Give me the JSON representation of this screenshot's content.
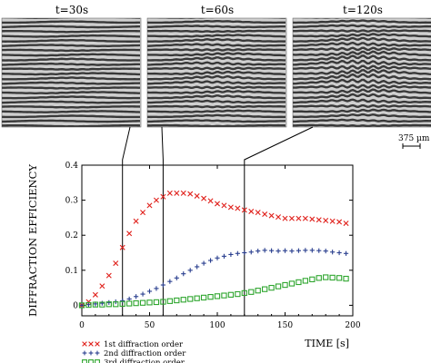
{
  "panels": [
    {
      "label": "t=30s",
      "time": 30,
      "chevron_strength": 0.15
    },
    {
      "label": "t=60s",
      "time": 60,
      "chevron_strength": 0.45
    },
    {
      "label": "t=120s",
      "time": 120,
      "chevron_strength": 0.85
    }
  ],
  "scale_bar": {
    "label": "375 µm"
  },
  "chart_data": {
    "type": "scatter",
    "title": "",
    "xlabel": "TIME [s]",
    "ylabel": "DIFFRACTION EFFICIENCY",
    "xlim": [
      0,
      200
    ],
    "ylim": [
      -0.03,
      0.4
    ],
    "x_ticks": [
      0,
      50,
      100,
      150,
      200
    ],
    "y_ticks": [
      0,
      0.1,
      0.2,
      0.3,
      0.4
    ],
    "grid": false,
    "legend_position": "bottom-left-outside",
    "vertical_markers": [
      30,
      60,
      120
    ],
    "series": [
      {
        "name": "1st diffraction order",
        "marker": "x",
        "color": "#e0201b",
        "x": [
          0,
          5,
          10,
          15,
          20,
          25,
          30,
          35,
          40,
          45,
          50,
          55,
          60,
          65,
          70,
          75,
          80,
          85,
          90,
          95,
          100,
          105,
          110,
          115,
          120,
          125,
          130,
          135,
          140,
          145,
          150,
          155,
          160,
          165,
          170,
          175,
          180,
          185,
          190,
          195
        ],
        "y": [
          0.0,
          0.01,
          0.03,
          0.055,
          0.085,
          0.12,
          0.165,
          0.205,
          0.24,
          0.265,
          0.285,
          0.3,
          0.31,
          0.32,
          0.32,
          0.32,
          0.318,
          0.312,
          0.305,
          0.298,
          0.29,
          0.285,
          0.28,
          0.277,
          0.272,
          0.268,
          0.265,
          0.26,
          0.256,
          0.252,
          0.248,
          0.248,
          0.248,
          0.248,
          0.246,
          0.244,
          0.242,
          0.24,
          0.238,
          0.234
        ]
      },
      {
        "name": "2nd diffraction order",
        "marker": "+",
        "color": "#2a3f8f",
        "x": [
          0,
          5,
          10,
          15,
          20,
          25,
          30,
          35,
          40,
          45,
          50,
          55,
          60,
          65,
          70,
          75,
          80,
          85,
          90,
          95,
          100,
          105,
          110,
          115,
          120,
          125,
          130,
          135,
          140,
          145,
          150,
          155,
          160,
          165,
          170,
          175,
          180,
          185,
          190,
          195
        ],
        "y": [
          0.0,
          0.002,
          0.004,
          0.006,
          0.008,
          0.01,
          0.013,
          0.018,
          0.025,
          0.032,
          0.04,
          0.048,
          0.058,
          0.068,
          0.078,
          0.09,
          0.1,
          0.11,
          0.12,
          0.128,
          0.135,
          0.14,
          0.145,
          0.148,
          0.15,
          0.152,
          0.155,
          0.157,
          0.156,
          0.155,
          0.156,
          0.155,
          0.156,
          0.157,
          0.157,
          0.156,
          0.155,
          0.152,
          0.15,
          0.148
        ]
      },
      {
        "name": "3rd diffraction order",
        "marker": "square",
        "color": "#2fa62f",
        "x": [
          0,
          5,
          10,
          15,
          20,
          25,
          30,
          35,
          40,
          45,
          50,
          55,
          60,
          65,
          70,
          75,
          80,
          85,
          90,
          95,
          100,
          105,
          110,
          115,
          120,
          125,
          130,
          135,
          140,
          145,
          150,
          155,
          160,
          165,
          170,
          175,
          180,
          185,
          190,
          195
        ],
        "y": [
          0.0,
          0.001,
          0.002,
          0.002,
          0.003,
          0.003,
          0.004,
          0.005,
          0.006,
          0.007,
          0.008,
          0.009,
          0.01,
          0.012,
          0.014,
          0.016,
          0.018,
          0.02,
          0.022,
          0.024,
          0.026,
          0.028,
          0.03,
          0.032,
          0.035,
          0.038,
          0.042,
          0.046,
          0.05,
          0.054,
          0.058,
          0.062,
          0.066,
          0.07,
          0.074,
          0.078,
          0.08,
          0.079,
          0.078,
          0.076
        ]
      }
    ]
  }
}
